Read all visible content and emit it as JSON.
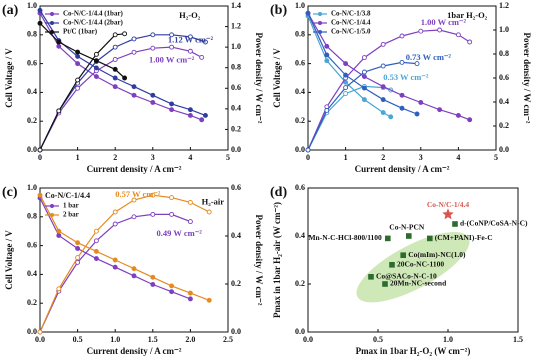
{
  "chart_data": [
    {
      "type": "line",
      "panel_label": "(a)",
      "xlabel": "Current density / A cm⁻²",
      "ylabel": "Cell Voltage / V",
      "y2label": "Power density / W cm⁻²",
      "xlim": [
        0,
        5
      ],
      "xticks": [
        0,
        1,
        2,
        3,
        4,
        5
      ],
      "ylim": [
        0,
        1
      ],
      "yticks": [
        {
          "value": 0,
          "label": "0.0"
        },
        {
          "value": 0.2,
          "label": "0.2"
        },
        {
          "value": 0.4,
          "label": "0.4"
        },
        {
          "value": 0.6,
          "label": "0.6"
        },
        {
          "value": 0.8,
          "label": "0.8"
        },
        {
          "value": 1,
          "label": "1.0"
        }
      ],
      "y2lim": [
        0,
        1.4
      ],
      "y2ticks": [
        {
          "value": 0,
          "label": "0.0"
        },
        {
          "value": 0.2,
          "label": "0.2"
        },
        {
          "value": 0.4,
          "label": "0.4"
        },
        {
          "value": 0.6,
          "label": "0.6"
        },
        {
          "value": 0.8,
          "label": "0.8"
        },
        {
          "value": 1,
          "label": "1.0"
        },
        {
          "value": 1.2,
          "label": "1.2"
        },
        {
          "value": 1.4,
          "label": "1.4"
        }
      ],
      "legend": "upper left",
      "series": [
        {
          "name": "Co-N/C-1/4.4 (1bar)",
          "color": "#7e3fc0",
          "x": [
            0,
            0.5,
            1,
            1.5,
            2,
            2.5,
            3,
            3.5,
            4,
            4.3
          ],
          "values": [
            0.95,
            0.72,
            0.6,
            0.51,
            0.44,
            0.38,
            0.33,
            0.28,
            0.24,
            0.21
          ],
          "power": [
            0,
            0.36,
            0.6,
            0.77,
            0.88,
            0.95,
            0.99,
            1.0,
            0.96,
            0.9
          ]
        },
        {
          "name": "Co-N/C-1/4.4 (2bar)",
          "color": "#2f3e9e",
          "x": [
            0,
            0.5,
            1,
            1.5,
            2,
            2.5,
            3,
            3.5,
            4,
            4.4
          ],
          "values": [
            0.97,
            0.76,
            0.65,
            0.57,
            0.5,
            0.44,
            0.38,
            0.32,
            0.28,
            0.24
          ],
          "power": [
            0,
            0.38,
            0.65,
            0.86,
            1.0,
            1.08,
            1.12,
            1.12,
            1.1,
            1.05
          ]
        },
        {
          "name": "Pt/C (1bar)",
          "color": "#111111",
          "x": [
            0,
            0.5,
            1,
            1.5,
            2,
            2.25
          ],
          "values": [
            0.88,
            0.75,
            0.68,
            0.62,
            0.56,
            0.5
          ],
          "power": [
            0,
            0.38,
            0.68,
            0.93,
            1.12,
            1.13
          ]
        }
      ],
      "annotations": [
        {
          "text": "H₂-O₂",
          "color": "#111111"
        },
        {
          "text": "1.12 W cm⁻²",
          "color": "#2f3e9e"
        },
        {
          "text": "1.00 W cm⁻²",
          "color": "#7e3fc0"
        }
      ]
    },
    {
      "type": "line",
      "panel_label": "(b)",
      "xlabel": "Current density / A cm⁻²",
      "ylabel": "Cell Voltage / V",
      "y2label": "Power density / W cm⁻²",
      "xlim": [
        0,
        5
      ],
      "xticks": [
        0,
        1,
        2,
        3,
        4,
        5
      ],
      "ylim": [
        0,
        1
      ],
      "yticks": [
        {
          "value": 0,
          "label": "0.0"
        },
        {
          "value": 0.2,
          "label": "0.2"
        },
        {
          "value": 0.4,
          "label": "0.4"
        },
        {
          "value": 0.6,
          "label": "0.6"
        },
        {
          "value": 0.8,
          "label": "0.8"
        },
        {
          "value": 1,
          "label": "1.0"
        }
      ],
      "y2lim": [
        0,
        1.2
      ],
      "y2ticks": [
        {
          "value": 0,
          "label": "0.0"
        },
        {
          "value": 0.2,
          "label": "0.2"
        },
        {
          "value": 0.4,
          "label": "0.4"
        },
        {
          "value": 0.6,
          "label": "0.6"
        },
        {
          "value": 0.8,
          "label": "0.8"
        },
        {
          "value": 1,
          "label": "1.0"
        },
        {
          "value": 1.2,
          "label": "1.2"
        }
      ],
      "legend": "upper left",
      "series": [
        {
          "name": "Co-N/C-1/3.8",
          "color": "#4aa6d6",
          "x": [
            0,
            0.5,
            1,
            1.5,
            2,
            2.2
          ],
          "values": [
            0.93,
            0.62,
            0.47,
            0.35,
            0.26,
            0.23
          ],
          "power": [
            0,
            0.31,
            0.47,
            0.53,
            0.52,
            0.5
          ]
        },
        {
          "name": "Co-N/C-1/4.4",
          "color": "#7e3fc0",
          "x": [
            0,
            0.5,
            1,
            1.5,
            2,
            2.5,
            3,
            3.5,
            4,
            4.3
          ],
          "values": [
            0.95,
            0.72,
            0.6,
            0.51,
            0.44,
            0.38,
            0.33,
            0.28,
            0.24,
            0.21
          ],
          "power": [
            0,
            0.36,
            0.6,
            0.77,
            0.88,
            0.95,
            0.99,
            1.0,
            0.96,
            0.9
          ]
        },
        {
          "name": "Co-N/C-1/5.0",
          "color": "#2f5fbf",
          "x": [
            0,
            0.5,
            1,
            1.5,
            2,
            2.5,
            2.9
          ],
          "values": [
            0.95,
            0.66,
            0.52,
            0.43,
            0.35,
            0.29,
            0.25
          ],
          "power": [
            0,
            0.33,
            0.52,
            0.65,
            0.7,
            0.73,
            0.72
          ]
        }
      ],
      "annotations": [
        {
          "text": "1bar H₂-O₂",
          "color": "#111111"
        },
        {
          "text": "1.00 W cm⁻²",
          "color": "#7e3fc0"
        },
        {
          "text": "0.73 W cm⁻²",
          "color": "#2f5fbf"
        },
        {
          "text": "0.53 W cm⁻²",
          "color": "#4aa6d6"
        }
      ]
    },
    {
      "type": "line",
      "panel_label": "(c)",
      "xlabel": "Current density / A cm⁻²",
      "ylabel": "Cell Voltage / V",
      "y2label": "Power density / W cm⁻²",
      "xlim": [
        0,
        2.5
      ],
      "xticks": [
        {
          "value": 0,
          "label": "0.0"
        },
        {
          "value": 0.5,
          "label": "0.5"
        },
        {
          "value": 1,
          "label": "1.0"
        },
        {
          "value": 1.5,
          "label": "1.5"
        },
        {
          "value": 2,
          "label": "2.0"
        },
        {
          "value": 2.5,
          "label": "2.5"
        }
      ],
      "ylim": [
        0,
        1
      ],
      "yticks": [
        {
          "value": 0,
          "label": "0.0"
        },
        {
          "value": 0.2,
          "label": "0.2"
        },
        {
          "value": 0.4,
          "label": "0.4"
        },
        {
          "value": 0.6,
          "label": "0.6"
        },
        {
          "value": 0.8,
          "label": "0.8"
        },
        {
          "value": 1,
          "label": "1.0"
        }
      ],
      "y2lim": [
        0,
        0.6
      ],
      "y2ticks": [
        {
          "value": 0,
          "label": "0.0"
        },
        {
          "value": 0.2,
          "label": "0.2"
        },
        {
          "value": 0.4,
          "label": "0.4"
        },
        {
          "value": 0.6,
          "label": "0.6"
        }
      ],
      "legend": "upper left",
      "legend_title": "Co-N/C-1/4.4",
      "series": [
        {
          "name": "1 bar",
          "color": "#7e3fc0",
          "x": [
            0,
            0.25,
            0.5,
            0.75,
            1,
            1.25,
            1.5,
            1.75,
            2
          ],
          "values": [
            0.93,
            0.67,
            0.58,
            0.51,
            0.45,
            0.39,
            0.33,
            0.28,
            0.23
          ],
          "power": [
            0,
            0.17,
            0.29,
            0.38,
            0.45,
            0.48,
            0.49,
            0.49,
            0.46
          ]
        },
        {
          "name": "2 bar",
          "color": "#e58a1f",
          "x": [
            0,
            0.25,
            0.5,
            0.75,
            1,
            1.25,
            1.5,
            1.75,
            2,
            2.25
          ],
          "values": [
            0.95,
            0.7,
            0.62,
            0.56,
            0.5,
            0.44,
            0.38,
            0.32,
            0.27,
            0.22
          ],
          "power": [
            0,
            0.18,
            0.31,
            0.42,
            0.5,
            0.55,
            0.57,
            0.56,
            0.54,
            0.5
          ]
        }
      ],
      "annotations": [
        {
          "text": "0.57 W cm⁻²",
          "color": "#e58a1f"
        },
        {
          "text": "H₂-air",
          "color": "#111111"
        },
        {
          "text": "0.49 W cm⁻²",
          "color": "#7e3fc0"
        }
      ]
    },
    {
      "type": "scatter",
      "panel_label": "(d)",
      "xlabel": "Pmax in 1bar H₂-O₂ (W cm⁻²)",
      "ylabel": "Pmax in 1bar H₂-air (W cm⁻²)",
      "xlim": [
        0,
        1.5
      ],
      "xticks": [
        {
          "value": 0,
          "label": "0.0"
        },
        {
          "value": 0.5,
          "label": "0.5"
        },
        {
          "value": 1,
          "label": "1.0"
        },
        {
          "value": 1.5,
          "label": "1.5"
        }
      ],
      "ylim": [
        0,
        0.6
      ],
      "yticks": [
        {
          "value": 0,
          "label": "0.0"
        },
        {
          "value": 0.2,
          "label": "0.2"
        },
        {
          "value": 0.4,
          "label": "0.4"
        },
        {
          "value": 0.6,
          "label": "0.6"
        }
      ],
      "series": [
        {
          "marker": "star",
          "color": "#d9534f",
          "x": [
            1.0
          ],
          "values": [
            0.49
          ],
          "labels": [
            "Co-N/C-1/4.4"
          ]
        },
        {
          "marker": "square",
          "color": "#2e6b2e",
          "x": [
            0.72,
            0.57,
            1.05,
            0.87,
            0.68,
            0.6,
            0.45,
            0.55
          ],
          "values": [
            0.4,
            0.39,
            0.45,
            0.39,
            0.32,
            0.28,
            0.23,
            0.2
          ],
          "labels": [
            "Co-N-PCN",
            "Mn-N-C-HCl-800/1100",
            "d-(CoNP/CoSA-N-C)",
            "(CM+PANI)-Fe-C",
            "Co(mIm)-NC(1.0)",
            "20Co-NC-1100",
            "Co@SACo-N-C-10",
            "20Mn-NC-second"
          ]
        }
      ]
    }
  ]
}
